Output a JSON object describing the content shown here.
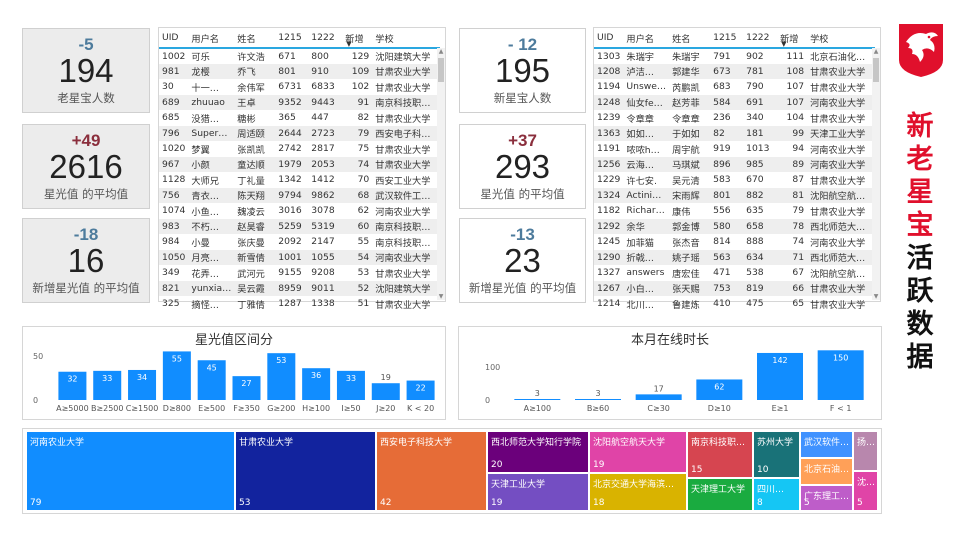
{
  "kpis_left": [
    {
      "delta": "-5",
      "value": "194",
      "label": "老星宝人数",
      "color": "#4d7b9c"
    },
    {
      "delta": "+49",
      "value": "2616",
      "label": "星光值 的平均值",
      "color": "#8b2f3d"
    },
    {
      "delta": "-18",
      "value": "16",
      "label": "新增星光值 的平均值",
      "color": "#4d7b9c"
    }
  ],
  "kpis_right": [
    {
      "delta": "- 12",
      "value": "195",
      "label": "新星宝人数",
      "color": "#4d7b9c"
    },
    {
      "delta": "+37",
      "value": "293",
      "label": "星光值 的平均值",
      "color": "#8b2f3d"
    },
    {
      "delta": "-13",
      "value": "23",
      "label": "新增星光值 的平均值",
      "color": "#4d7b9c"
    }
  ],
  "table_columns": [
    "UID",
    "用户名",
    "姓名",
    "1215",
    "1222",
    "新增",
    "学校"
  ],
  "table_left": [
    [
      "1002",
      "可乐",
      "许文浩",
      "671",
      "800",
      "129",
      "沈阳建筑大学"
    ],
    [
      "981",
      "龙樱",
      "乔飞",
      "801",
      "910",
      "109",
      "甘肃农业大学"
    ],
    [
      "30",
      "十一…",
      "余伟军",
      "6731",
      "6833",
      "102",
      "甘肃农业大学"
    ],
    [
      "689",
      "zhuuao",
      "王卓",
      "9352",
      "9443",
      "91",
      "南京科技职…"
    ],
    [
      "685",
      "没猎…",
      "糖彬",
      "365",
      "447",
      "82",
      "甘肃农业大学"
    ],
    [
      "796",
      "Super…",
      "周适颐",
      "2644",
      "2723",
      "79",
      "西安电子科…"
    ],
    [
      "1020",
      "梦翼",
      "张凯凯",
      "2742",
      "2817",
      "75",
      "甘肃农业大学"
    ],
    [
      "967",
      "小颜",
      "童达顺",
      "1979",
      "2053",
      "74",
      "甘肃农业大学"
    ],
    [
      "1128",
      "大师兄",
      "丁礼量",
      "1342",
      "1412",
      "70",
      "西安工业大学"
    ],
    [
      "756",
      "青衣…",
      "陈天翔",
      "9794",
      "9862",
      "68",
      "武汉软件工…"
    ],
    [
      "1074",
      "小鱼…",
      "魏凌云",
      "3016",
      "3078",
      "62",
      "河南农业大学"
    ],
    [
      "983",
      "不朽…",
      "赵昊睿",
      "5259",
      "5319",
      "60",
      "南京科技职…"
    ],
    [
      "984",
      "小曼",
      "张庆曼",
      "2092",
      "2147",
      "55",
      "南京科技职…"
    ],
    [
      "1050",
      "月亮…",
      "新雪倩",
      "1001",
      "1055",
      "54",
      "河南农业大学"
    ],
    [
      "349",
      "花弄…",
      "武河元",
      "9155",
      "9208",
      "53",
      "甘肃农业大学"
    ],
    [
      "821",
      "yunxia…",
      "吴云霞",
      "8959",
      "9011",
      "52",
      "沈阳建筑大学"
    ],
    [
      "325",
      "摘怪…",
      "丁雅倩",
      "1287",
      "1338",
      "51",
      "甘肃农业大学"
    ]
  ],
  "table_right": [
    [
      "1303",
      "朱瑞宇",
      "朱瑞宇",
      "791",
      "902",
      "111",
      "北京石油化…"
    ],
    [
      "1208",
      "泸洁…",
      "郭建华",
      "673",
      "781",
      "108",
      "甘肃农业大学"
    ],
    [
      "1194",
      "Unswe…",
      "芮鹏凯",
      "683",
      "790",
      "107",
      "甘肃农业大学"
    ],
    [
      "1248",
      "仙女fe…",
      "赵芳菲",
      "584",
      "691",
      "107",
      "河南农业大学"
    ],
    [
      "1239",
      "令章章",
      "令章章",
      "236",
      "340",
      "104",
      "甘肃农业大学"
    ],
    [
      "1363",
      "如如…",
      "于如如",
      "82",
      "181",
      "99",
      "天津工业大学"
    ],
    [
      "1191",
      "哝哝h…",
      "周宇航",
      "919",
      "1013",
      "94",
      "河南农业大学"
    ],
    [
      "1256",
      "云海…",
      "马琪斌",
      "896",
      "985",
      "89",
      "河南农业大学"
    ],
    [
      "1229",
      "许七安.",
      "吴元清",
      "583",
      "670",
      "87",
      "甘肃农业大学"
    ],
    [
      "1324",
      "Actini…",
      "宋雨辉",
      "801",
      "882",
      "81",
      "沈阳航空航…"
    ],
    [
      "1182",
      "Richar…",
      "康伟",
      "556",
      "635",
      "79",
      "甘肃农业大学"
    ],
    [
      "1292",
      "余华",
      "郭金博",
      "580",
      "658",
      "78",
      "西北师范大…"
    ],
    [
      "1245",
      "加菲猫",
      "张杰音",
      "814",
      "888",
      "74",
      "河南农业大学"
    ],
    [
      "1290",
      "折戟…",
      "姚子瑶",
      "563",
      "634",
      "71",
      "西北师范大…"
    ],
    [
      "1327",
      "answers",
      "唐宏佳",
      "471",
      "538",
      "67",
      "沈阳航空航…"
    ],
    [
      "1267",
      "小白…",
      "张天赐",
      "753",
      "819",
      "66",
      "甘肃农业大学"
    ],
    [
      "1214",
      "北川…",
      "鲁建炼",
      "410",
      "475",
      "65",
      "甘肃农业大学"
    ]
  ],
  "chart_left": {
    "type": "bar",
    "title": "星光值区间分",
    "categories": [
      "A≥5000",
      "B≥2500",
      "C≥1500",
      "D≥800",
      "E≥500",
      "F≥350",
      "G≥200",
      "H≥100",
      "I≥50",
      "J≥20",
      "K < 20"
    ],
    "values": [
      32,
      33,
      34,
      55,
      45,
      27,
      53,
      36,
      33,
      19,
      22
    ],
    "yticks": [
      "50",
      "0"
    ],
    "ylim": [
      0,
      60
    ],
    "bar_color": "#118dff",
    "highlight_color": "#1a73e8"
  },
  "chart_right": {
    "type": "bar",
    "title": "本月在线时长",
    "categories": [
      "A≥100",
      "B≥60",
      "C≥30",
      "D≥10",
      "E≥1",
      "F < 1"
    ],
    "values": [
      3,
      3,
      17,
      62,
      142,
      150
    ],
    "yticks": [
      "100",
      "0"
    ],
    "ylim": [
      0,
      160
    ],
    "bar_color": "#118dff"
  },
  "side_title": [
    {
      "ch": "新",
      "color": "#e0102c"
    },
    {
      "ch": "老",
      "color": "#e0102c"
    },
    {
      "ch": "星",
      "color": "#e0102c"
    },
    {
      "ch": "宝",
      "color": "#e0102c"
    },
    {
      "ch": "活",
      "color": "#111111"
    },
    {
      "ch": "跃",
      "color": "#111111"
    },
    {
      "ch": "数",
      "color": "#111111"
    },
    {
      "ch": "据",
      "color": "#111111"
    }
  ],
  "treemap": [
    {
      "name": "河南农业大学",
      "value": "79",
      "color": "#118dff"
    },
    {
      "name": "甘肃农业大学",
      "value": "53",
      "color": "#12239e"
    },
    {
      "name": "西安电子科技大学",
      "value": "42",
      "color": "#e66c37"
    },
    {
      "name": "西北师范大学知行学院",
      "value": "20",
      "color": "#6b007b"
    },
    {
      "name": "天津工业大学",
      "value": "19",
      "color": "#744ec2"
    },
    {
      "name": "沈阳航空航天大学",
      "value": "19",
      "color": "#e044a7"
    },
    {
      "name": "北京交通大学海滨…",
      "value": "18",
      "color": "#d9b300"
    },
    {
      "name": "南京科技职…",
      "value": "15",
      "color": "#d64550"
    },
    {
      "name": "天津理工大学",
      "value": "",
      "color": "#1aab40"
    },
    {
      "name": "苏州大学",
      "value": "10",
      "color": "#197278"
    },
    {
      "name": "四川…",
      "value": "8",
      "color": "#15c6f4"
    },
    {
      "name": "武汉软件…",
      "value": "",
      "color": "#4092ff"
    },
    {
      "name": "北京石油…",
      "value": "",
      "color": "#ffa058"
    },
    {
      "name": "广东理工…",
      "value": "5",
      "color": "#be5dc9"
    },
    {
      "name": "扬…",
      "value": "",
      "color": "#b887ad"
    },
    {
      "name": "沈…",
      "value": "5",
      "color": "#e044a7"
    }
  ]
}
